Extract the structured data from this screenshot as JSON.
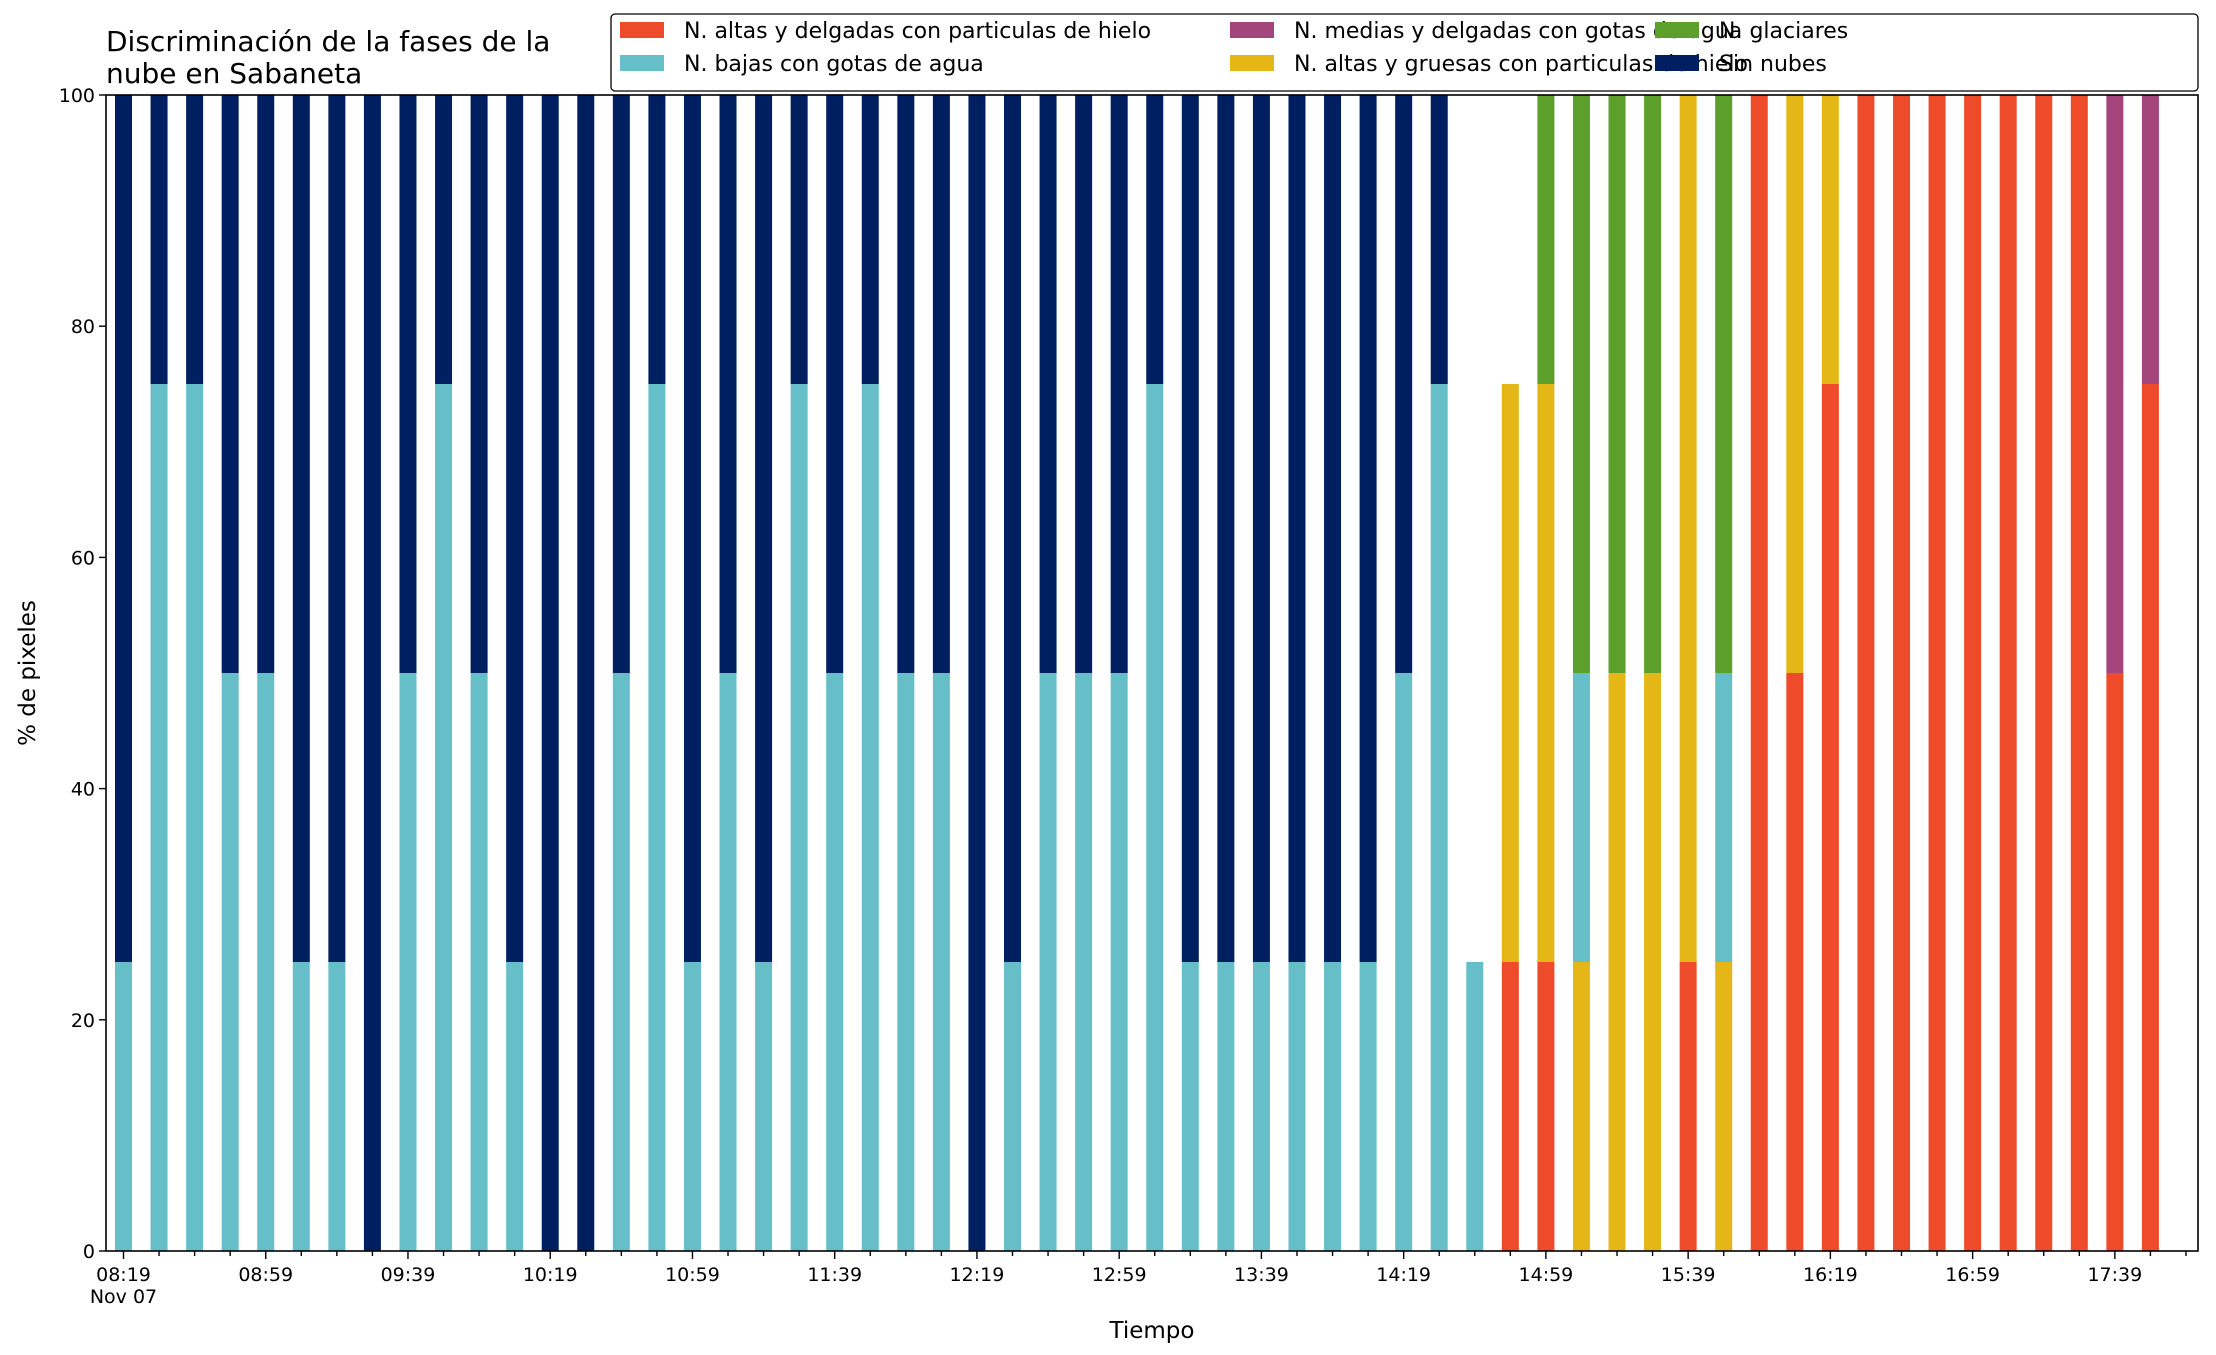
{
  "chart_data": {
    "type": "bar",
    "stacked": true,
    "title_lines": [
      "Discriminación de la fases de la",
      "nube en Sabaneta"
    ],
    "xlabel": "Tiempo",
    "ylabel": "% de pixeles",
    "ylim": [
      0,
      100
    ],
    "yticks": [
      "0",
      "20",
      "40",
      "60",
      "80",
      "100"
    ],
    "x_tick_labels": [
      "08:19",
      "08:59",
      "09:39",
      "10:19",
      "10:59",
      "11:39",
      "12:19",
      "12:59",
      "13:39",
      "14:19",
      "14:59",
      "15:39",
      "16:19",
      "16:59",
      "17:39"
    ],
    "x_date_label": "Nov 07",
    "categories": [
      "08:19",
      "08:29",
      "08:39",
      "08:49",
      "08:59",
      "09:09",
      "09:19",
      "09:29",
      "09:39",
      "09:49",
      "09:59",
      "10:09",
      "10:19",
      "10:29",
      "10:39",
      "10:49",
      "10:59",
      "11:09",
      "11:19",
      "11:29",
      "11:39",
      "11:49",
      "11:59",
      "12:09",
      "12:19",
      "12:29",
      "12:39",
      "12:49",
      "12:59",
      "13:09",
      "13:19",
      "13:29",
      "13:39",
      "13:49",
      "13:59",
      "14:09",
      "14:19",
      "14:29",
      "14:39",
      "14:49",
      "14:59",
      "15:09",
      "15:19",
      "15:29",
      "15:39",
      "15:49",
      "15:59",
      "16:09",
      "16:19",
      "16:29",
      "16:39",
      "16:49",
      "16:59",
      "17:09",
      "17:19",
      "17:29",
      "17:39",
      "17:49"
    ],
    "legend_position": "top-right",
    "grid": false,
    "series": [
      {
        "name": "N. altas y delgadas con particulas de hielo",
        "color": "#ee4b2b",
        "values": [
          0,
          0,
          0,
          0,
          0,
          0,
          0,
          0,
          0,
          0,
          0,
          0,
          0,
          0,
          0,
          0,
          0,
          0,
          0,
          0,
          0,
          0,
          0,
          0,
          0,
          0,
          0,
          0,
          0,
          0,
          0,
          0,
          0,
          0,
          0,
          0,
          0,
          0,
          0,
          25,
          25,
          0,
          0,
          0,
          25,
          0,
          100,
          50,
          75,
          100,
          100,
          100,
          100,
          100,
          100,
          100,
          50,
          75
        ]
      },
      {
        "name": "N. altas y gruesas con particulas de hielo",
        "color": "#e4b717",
        "values": [
          0,
          0,
          0,
          0,
          0,
          0,
          0,
          0,
          0,
          0,
          0,
          0,
          0,
          0,
          0,
          0,
          0,
          0,
          0,
          0,
          0,
          0,
          0,
          0,
          0,
          0,
          0,
          0,
          0,
          0,
          0,
          0,
          0,
          0,
          0,
          0,
          0,
          0,
          0,
          50,
          50,
          25,
          50,
          50,
          75,
          25,
          0,
          50,
          25,
          0,
          0,
          0,
          0,
          0,
          0,
          0,
          0,
          0
        ]
      },
      {
        "name": "N. bajas con gotas de agua",
        "color": "#66bec9",
        "values": [
          25,
          75,
          75,
          50,
          50,
          25,
          25,
          0,
          50,
          75,
          50,
          25,
          0,
          0,
          50,
          75,
          25,
          50,
          25,
          75,
          50,
          75,
          50,
          50,
          0,
          25,
          50,
          50,
          50,
          75,
          25,
          25,
          25,
          25,
          25,
          25,
          50,
          75,
          25,
          0,
          0,
          25,
          0,
          0,
          0,
          25,
          0,
          0,
          0,
          0,
          0,
          0,
          0,
          0,
          0,
          0,
          0,
          0
        ]
      },
      {
        "name": "N. glaciares",
        "color": "#5c9f2a",
        "values": [
          0,
          0,
          0,
          0,
          0,
          0,
          0,
          0,
          0,
          0,
          0,
          0,
          0,
          0,
          0,
          0,
          0,
          0,
          0,
          0,
          0,
          0,
          0,
          0,
          0,
          0,
          0,
          0,
          0,
          0,
          0,
          0,
          0,
          0,
          0,
          0,
          0,
          0,
          0,
          0,
          25,
          50,
          50,
          50,
          0,
          50,
          0,
          0,
          0,
          0,
          0,
          0,
          0,
          0,
          0,
          0,
          0,
          0
        ]
      },
      {
        "name": "N. medias y delgadas con gotas de agua",
        "color": "#a4457b",
        "values": [
          0,
          0,
          0,
          0,
          0,
          0,
          0,
          0,
          0,
          0,
          0,
          0,
          0,
          0,
          0,
          0,
          0,
          0,
          0,
          0,
          0,
          0,
          0,
          0,
          0,
          0,
          0,
          0,
          0,
          0,
          0,
          0,
          0,
          0,
          0,
          0,
          0,
          0,
          0,
          0,
          0,
          0,
          0,
          0,
          0,
          0,
          0,
          0,
          0,
          0,
          0,
          0,
          0,
          0,
          0,
          0,
          50,
          25
        ]
      },
      {
        "name": "Sin nubes",
        "color": "#001f60",
        "values": [
          75,
          25,
          25,
          50,
          50,
          75,
          75,
          100,
          50,
          25,
          50,
          75,
          100,
          100,
          50,
          25,
          75,
          50,
          75,
          25,
          50,
          25,
          50,
          50,
          100,
          75,
          50,
          50,
          50,
          25,
          75,
          75,
          75,
          75,
          75,
          75,
          50,
          25,
          0,
          0,
          0,
          0,
          0,
          0,
          0,
          0,
          0,
          0,
          0,
          0,
          0,
          0,
          0,
          0,
          0,
          0,
          0,
          0
        ]
      }
    ],
    "legend_order": [
      0,
      2,
      4,
      1,
      3,
      5
    ]
  }
}
